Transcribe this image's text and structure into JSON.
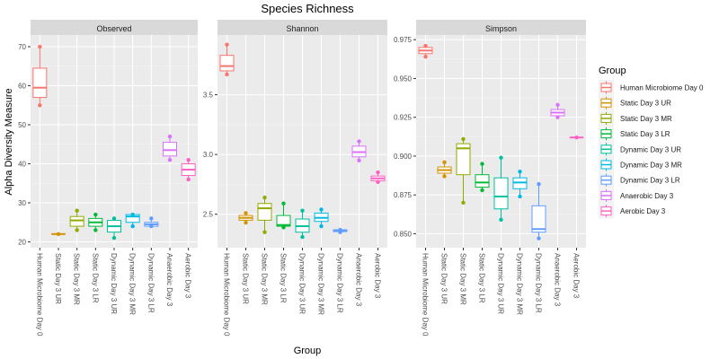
{
  "chart_data": {
    "type": "boxplot",
    "title": "Species Richness",
    "xlabel": "Group",
    "ylabel": "Alpha Diversity Measure",
    "grid": true,
    "legend": {
      "title": "Group",
      "position": "right"
    },
    "categories": [
      "Human Microbiome Day 0",
      "Static Day 3 UR",
      "Static Day 3 MR",
      "Static Day 3 LR",
      "Dynamic Day 3 UR",
      "Dynamic Day 3 MR",
      "Dynamic Day 3 LR",
      "Anaerobic Day 3",
      "Aerobic Day 3"
    ],
    "colors": [
      "#F8766D",
      "#D39200",
      "#93AA00",
      "#00BA38",
      "#00C19F",
      "#00B9E3",
      "#619CFF",
      "#DB72FB",
      "#FF61C3"
    ],
    "panels": [
      {
        "name": "Observed",
        "ylim": [
          18.5,
          73
        ],
        "yticks": [
          20,
          30,
          40,
          50,
          60,
          70
        ],
        "ytick_labels": [
          "20",
          "30",
          "40",
          "50",
          "60",
          "70"
        ],
        "boxes": [
          {
            "min": 55,
            "q1": 57,
            "median": 59.5,
            "q3": 64.5,
            "max": 70,
            "points": [
              55,
              70
            ]
          },
          {
            "min": 22,
            "q1": 22,
            "median": 22,
            "q3": 22,
            "max": 22,
            "points": [
              22
            ]
          },
          {
            "min": 23,
            "q1": 24,
            "median": 25.5,
            "q3": 26.5,
            "max": 28,
            "points": [
              23,
              28
            ]
          },
          {
            "min": 23,
            "q1": 24,
            "median": 25,
            "q3": 26,
            "max": 27,
            "points": [
              23,
              27
            ]
          },
          {
            "min": 21,
            "q1": 22.5,
            "median": 24,
            "q3": 25.5,
            "max": 26,
            "points": [
              21,
              26
            ]
          },
          {
            "min": 24,
            "q1": 25,
            "median": 26.5,
            "q3": 27,
            "max": 27,
            "points": [
              24,
              27
            ]
          },
          {
            "min": 24,
            "q1": 24,
            "median": 24.5,
            "q3": 25,
            "max": 26,
            "points": [
              24,
              26
            ]
          },
          {
            "min": 41,
            "q1": 42,
            "median": 43.5,
            "q3": 45.5,
            "max": 47,
            "points": [
              41,
              47
            ]
          },
          {
            "min": 36,
            "q1": 37,
            "median": 38.5,
            "q3": 40,
            "max": 41,
            "points": [
              36,
              41
            ]
          }
        ]
      },
      {
        "name": "Shannon",
        "ylim": [
          2.22,
          4.0
        ],
        "yticks": [
          2.5,
          3.0,
          3.5
        ],
        "ytick_labels": [
          "2.5",
          "3.0",
          "3.5"
        ],
        "boxes": [
          {
            "min": 3.67,
            "q1": 3.7,
            "median": 3.74,
            "q3": 3.83,
            "max": 3.92,
            "points": [
              3.67,
              3.92
            ]
          },
          {
            "min": 2.43,
            "q1": 2.45,
            "median": 2.47,
            "q3": 2.49,
            "max": 2.51,
            "points": [
              2.43,
              2.51
            ]
          },
          {
            "min": 2.35,
            "q1": 2.45,
            "median": 2.55,
            "q3": 2.59,
            "max": 2.64,
            "points": [
              2.35,
              2.64
            ]
          },
          {
            "min": 2.39,
            "q1": 2.4,
            "median": 2.41,
            "q3": 2.49,
            "max": 2.59,
            "points": [
              2.39,
              2.59
            ]
          },
          {
            "min": 2.31,
            "q1": 2.35,
            "median": 2.4,
            "q3": 2.46,
            "max": 2.53,
            "points": [
              2.31,
              2.53
            ]
          },
          {
            "min": 2.4,
            "q1": 2.44,
            "median": 2.47,
            "q3": 2.51,
            "max": 2.54,
            "points": [
              2.4,
              2.54
            ]
          },
          {
            "min": 2.35,
            "q1": 2.355,
            "median": 2.36,
            "q3": 2.37,
            "max": 2.37,
            "points": [
              2.35,
              2.37
            ]
          },
          {
            "min": 2.95,
            "q1": 2.98,
            "median": 3.02,
            "q3": 3.07,
            "max": 3.11,
            "points": [
              2.95,
              3.11
            ]
          },
          {
            "min": 2.77,
            "q1": 2.78,
            "median": 2.8,
            "q3": 2.82,
            "max": 2.85,
            "points": [
              2.77,
              2.85
            ]
          }
        ]
      },
      {
        "name": "Simpson",
        "ylim": [
          0.841,
          0.978
        ],
        "yticks": [
          0.85,
          0.875,
          0.9,
          0.925,
          0.95,
          0.975
        ],
        "ytick_labels": [
          "0.850",
          "0.875",
          "0.900",
          "0.925",
          "0.950",
          "0.975"
        ],
        "boxes": [
          {
            "min": 0.964,
            "q1": 0.966,
            "median": 0.968,
            "q3": 0.97,
            "max": 0.971,
            "points": [
              0.964,
              0.971
            ]
          },
          {
            "min": 0.887,
            "q1": 0.889,
            "median": 0.891,
            "q3": 0.893,
            "max": 0.896,
            "points": [
              0.887,
              0.896
            ]
          },
          {
            "min": 0.87,
            "q1": 0.888,
            "median": 0.905,
            "q3": 0.908,
            "max": 0.911,
            "points": [
              0.87,
              0.911
            ]
          },
          {
            "min": 0.878,
            "q1": 0.88,
            "median": 0.883,
            "q3": 0.888,
            "max": 0.895,
            "points": [
              0.878,
              0.895
            ]
          },
          {
            "min": 0.859,
            "q1": 0.866,
            "median": 0.874,
            "q3": 0.886,
            "max": 0.899,
            "points": [
              0.859,
              0.899
            ]
          },
          {
            "min": 0.874,
            "q1": 0.879,
            "median": 0.883,
            "q3": 0.886,
            "max": 0.89,
            "points": [
              0.874,
              0.89
            ]
          },
          {
            "min": 0.847,
            "q1": 0.851,
            "median": 0.853,
            "q3": 0.868,
            "max": 0.882,
            "points": [
              0.847,
              0.882
            ]
          },
          {
            "min": 0.925,
            "q1": 0.926,
            "median": 0.928,
            "q3": 0.93,
            "max": 0.933,
            "points": [
              0.925,
              0.933
            ]
          },
          {
            "min": 0.912,
            "q1": 0.912,
            "median": 0.912,
            "q3": 0.912,
            "max": 0.912,
            "points": [
              0.912
            ]
          }
        ]
      }
    ]
  }
}
